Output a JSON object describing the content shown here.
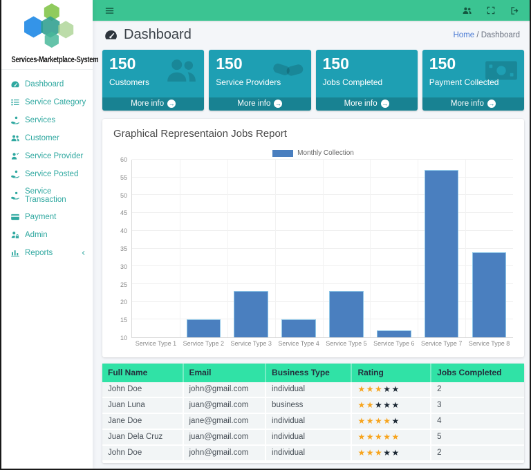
{
  "brand": {
    "name": "Services-Marketplace-System"
  },
  "topnav": {
    "icons": [
      "users-icon",
      "fullscreen-icon",
      "sign-out-icon"
    ],
    "menu_icon": "hamburger-icon"
  },
  "page": {
    "title": "Dashboard",
    "title_icon": "tachometer-icon",
    "breadcrumb": {
      "home": "Home",
      "separator": "/",
      "current": "Dashboard"
    }
  },
  "sidebar": {
    "items": [
      {
        "label": "Dashboard",
        "icon": "tachometer"
      },
      {
        "label": "Service Category",
        "icon": "list"
      },
      {
        "label": "Services",
        "icon": "hand-usd"
      },
      {
        "label": "Customer",
        "icon": "users"
      },
      {
        "label": "Service Provider",
        "icon": "user-check"
      },
      {
        "label": "Service Posted",
        "icon": "hand-usd"
      },
      {
        "label": "Service Transaction",
        "icon": "hand-give"
      },
      {
        "label": "Payment",
        "icon": "credit-card"
      },
      {
        "label": "Admin",
        "icon": "user-lock"
      },
      {
        "label": "Reports",
        "icon": "chart-bar",
        "chevron": true
      }
    ]
  },
  "info_boxes": [
    {
      "value": "150",
      "label": "Customers",
      "icon": "users-big",
      "more": "More info"
    },
    {
      "value": "150",
      "label": "Service Providers",
      "icon": "handshake",
      "more": "More info"
    },
    {
      "value": "150",
      "label": "Jobs Completed",
      "icon": null,
      "more": "More info"
    },
    {
      "value": "150",
      "label": "Payment Collected",
      "icon": "money-bill",
      "more": "More info"
    }
  ],
  "chart_card": {
    "title": "Graphical Representaion Jobs Report"
  },
  "chart_data": {
    "type": "bar",
    "title": "Graphical Representaion Jobs Report",
    "categories": [
      "Service Type 1",
      "Service Type 2",
      "Service Type 3",
      "Service Type 4",
      "Service Type 5",
      "Service Type 6",
      "Service Type 7",
      "Service Type 8"
    ],
    "series": [
      {
        "name": "Monthly Collection",
        "values": [
          10,
          15,
          23,
          15,
          23,
          12,
          57,
          34
        ]
      }
    ],
    "xlabel": "",
    "ylabel": "",
    "ylim": [
      10,
      60
    ],
    "ytick_step": 5,
    "grid": true,
    "legend_position": "top-center",
    "bar_color": "#4a7fbf",
    "bar_border_color": "#8fc7e8"
  },
  "table": {
    "headers": [
      "Full Name",
      "Email",
      "Business Type",
      "Rating",
      "Jobs Completed"
    ],
    "rating_max": 5,
    "rows": [
      {
        "full_name": "John Doe",
        "email": "john@gmail.com",
        "business_type": "individual",
        "rating": 3,
        "jobs_completed": "2"
      },
      {
        "full_name": "Juan Luna",
        "email": "juan@gmail.com",
        "business_type": "business",
        "rating": 2,
        "jobs_completed": "3"
      },
      {
        "full_name": "Jane Doe",
        "email": "jane@gmail.com",
        "business_type": "individual",
        "rating": 4,
        "jobs_completed": "4"
      },
      {
        "full_name": "Juan Dela Cruz",
        "email": "juan@gmail.com",
        "business_type": "individual",
        "rating": 5,
        "jobs_completed": "5"
      },
      {
        "full_name": "John Doe",
        "email": "john@gmail.com",
        "business_type": "individual",
        "rating": 3,
        "jobs_completed": "2"
      }
    ]
  },
  "colors": {
    "navbar": "#3bc492",
    "sidebar_link": "#2fa8a0",
    "info_box": "#1e9fb3",
    "info_box_footer": "#15879c",
    "table_header": "#30e2a6",
    "bar": "#4a7fbf",
    "bar_border": "#8fc7e8",
    "star_on": "#f7a41d",
    "star_off": "#1b2733",
    "link": "#4b7bd4",
    "background": "#f4f6f9"
  }
}
